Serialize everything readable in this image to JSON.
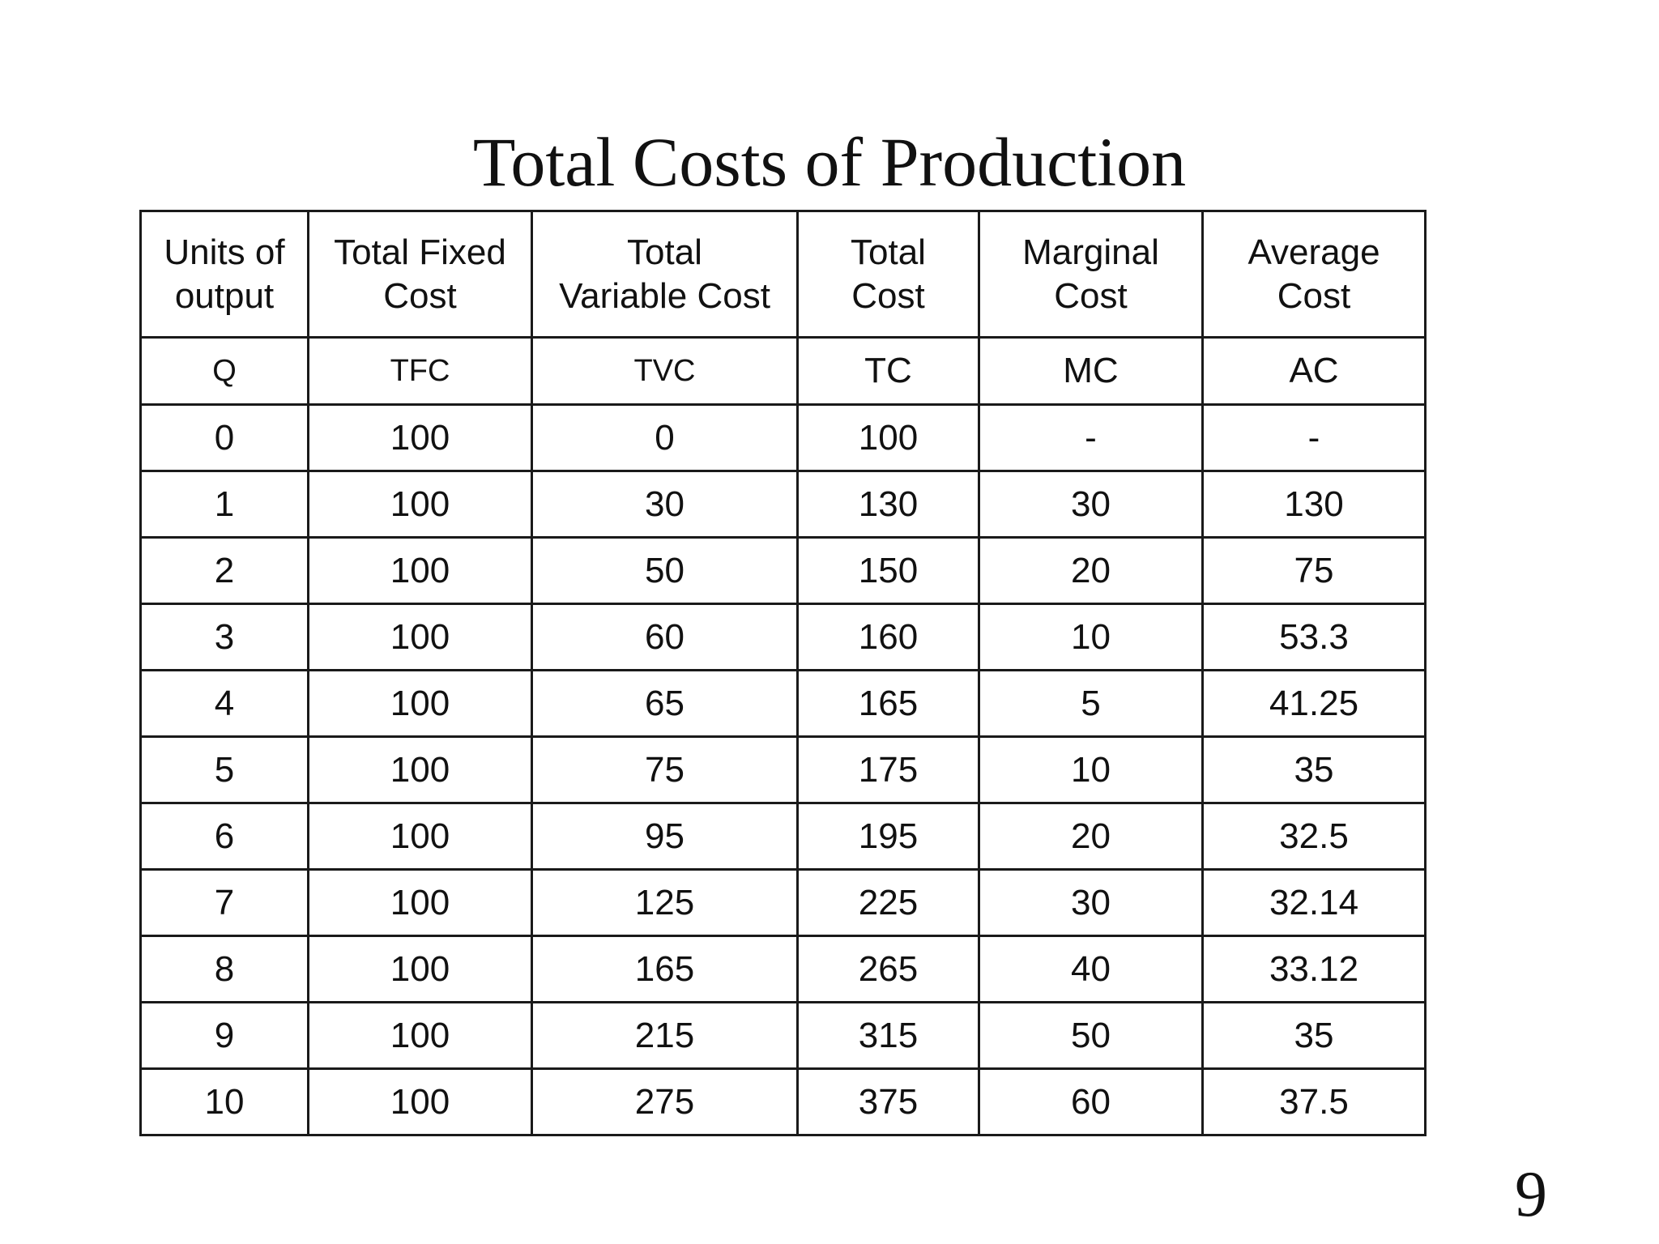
{
  "title": "Total Costs of Production",
  "page_number": "9",
  "table": {
    "headers": [
      [
        "Units of",
        "output"
      ],
      [
        "Total Fixed",
        "Cost"
      ],
      [
        "Total",
        "Variable Cost"
      ],
      [
        "Total",
        "Cost"
      ],
      [
        "Marginal",
        "Cost"
      ],
      [
        "Average",
        "Cost"
      ]
    ],
    "abbreviations": [
      "Q",
      "TFC",
      "TVC",
      "TC",
      "MC",
      "AC"
    ],
    "rows": [
      [
        "0",
        "100",
        "0",
        "100",
        "-",
        "-"
      ],
      [
        "1",
        "100",
        "30",
        "130",
        "30",
        "130"
      ],
      [
        "2",
        "100",
        "50",
        "150",
        "20",
        "75"
      ],
      [
        "3",
        "100",
        "60",
        "160",
        "10",
        "53.3"
      ],
      [
        "4",
        "100",
        "65",
        "165",
        "5",
        "41.25"
      ],
      [
        "5",
        "100",
        "75",
        "175",
        "10",
        "35"
      ],
      [
        "6",
        "100",
        "95",
        "195",
        "20",
        "32.5"
      ],
      [
        "7",
        "100",
        "125",
        "225",
        "30",
        "32.14"
      ],
      [
        "8",
        "100",
        "165",
        "265",
        "40",
        "33.12"
      ],
      [
        "9",
        "100",
        "215",
        "315",
        "50",
        "35"
      ],
      [
        "10",
        "100",
        "275",
        "375",
        "60",
        "37.5"
      ]
    ]
  }
}
